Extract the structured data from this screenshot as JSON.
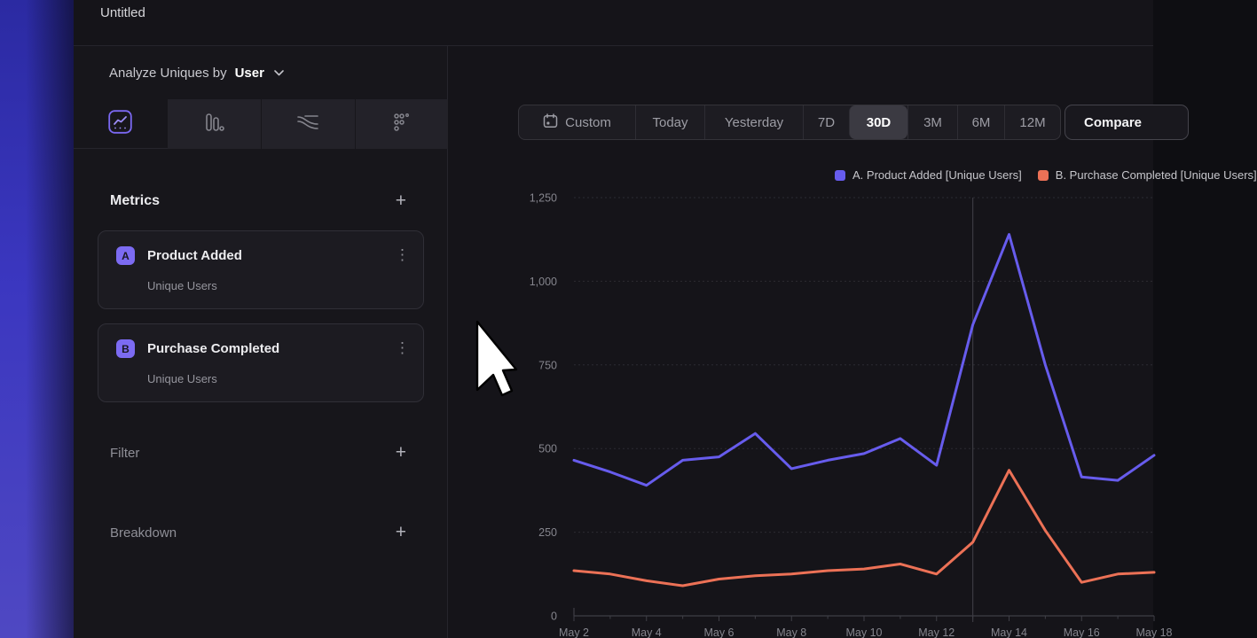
{
  "page": {
    "title": "Untitled"
  },
  "sidebar": {
    "analyze_label": "Analyze Uniques by",
    "analyze_value": "User",
    "tabs": [
      {
        "name": "line-chart",
        "selected": true
      },
      {
        "name": "bar-chart",
        "selected": false
      },
      {
        "name": "flow",
        "selected": false
      },
      {
        "name": "retention-grid",
        "selected": false
      }
    ],
    "metrics": {
      "header": "Metrics",
      "add_label": "+",
      "items": [
        {
          "badge": "A",
          "name": "Product Added",
          "subtitle": "Unique Users",
          "menu_icon": "⋮"
        },
        {
          "badge": "B",
          "name": "Purchase Completed",
          "subtitle": "Unique Users",
          "menu_icon": "⋮"
        }
      ]
    },
    "filter": {
      "header": "Filter",
      "add_label": "+"
    },
    "breakdown": {
      "header": "Breakdown",
      "add_label": "+"
    }
  },
  "toolbar": {
    "ranges": [
      "Custom",
      "Today",
      "Yesterday",
      "7D",
      "30D",
      "3M",
      "6M",
      "12M"
    ],
    "selected": "30D",
    "compare_label": "Compare"
  },
  "chart_data": {
    "type": "line",
    "x": [
      "May 2",
      "May 3",
      "May 4",
      "May 5",
      "May 6",
      "May 7",
      "May 8",
      "May 9",
      "May 10",
      "May 11",
      "May 12",
      "May 13",
      "May 14",
      "May 15",
      "May 16",
      "May 17",
      "May 18"
    ],
    "xtick_labels": [
      "May 2",
      "May 4",
      "May 6",
      "May 8",
      "May 10",
      "May 12",
      "May 14",
      "May 16",
      "May 18"
    ],
    "series": [
      {
        "name": "A. Product Added [Unique Users]",
        "color": "#675ced",
        "values": [
          465,
          430,
          390,
          465,
          475,
          545,
          440,
          465,
          485,
          530,
          450,
          870,
          1140,
          750,
          415,
          405,
          480
        ]
      },
      {
        "name": "B. Purchase Completed [Unique Users]",
        "color": "#ec7156",
        "values": [
          135,
          125,
          105,
          90,
          110,
          120,
          125,
          135,
          140,
          155,
          125,
          220,
          435,
          255,
          100,
          125,
          130
        ]
      }
    ],
    "ylim": [
      0,
      1250
    ],
    "yticks": [
      0,
      250,
      500,
      750,
      1000,
      1250
    ],
    "ytick_labels": [
      "0",
      "250",
      "500",
      "750",
      "1,000",
      "1,250"
    ],
    "grid": true,
    "marker_x_index": 11,
    "legend_position": "top-right"
  },
  "colors": {
    "accent_purple": "#7c6bf2",
    "series_a": "#675ced",
    "series_b": "#ec7156",
    "grid": "#2c2b32",
    "axis": "#3f3e46",
    "tick_text": "#85858d"
  }
}
